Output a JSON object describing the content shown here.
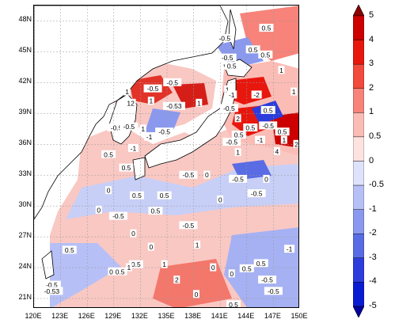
{
  "map": {
    "lat_labels": [
      "48N",
      "45N",
      "42N",
      "39N",
      "36N",
      "33N",
      "30N",
      "27N",
      "24N",
      "21N"
    ],
    "lon_labels": [
      "120E",
      "123E",
      "126E",
      "129E",
      "132E",
      "135E",
      "138E",
      "141E",
      "144E",
      "147E",
      "150E"
    ],
    "lat_range": [
      20,
      49.5
    ],
    "lon_range": [
      120,
      150
    ],
    "grid": "dashed-gray",
    "contour_labels": [
      {
        "text": "0.5",
        "lon": 146.2,
        "lat": 47.3
      },
      {
        "text": "-0.5",
        "lon": 141.5,
        "lat": 46.3
      },
      {
        "text": "0.5",
        "lon": 144.7,
        "lat": 45.2
      },
      {
        "text": "0.5",
        "lon": 146.1,
        "lat": 44.7
      },
      {
        "text": "-0.5",
        "lon": 141.8,
        "lat": 44.4
      },
      {
        "text": "0.5",
        "lon": 142.3,
        "lat": 43.6
      },
      {
        "text": "1",
        "lon": 147.9,
        "lat": 43.2
      },
      {
        "text": "-0.5",
        "lon": 135.6,
        "lat": 42.0
      },
      {
        "text": "-0.5",
        "lon": 133.4,
        "lat": 41.4
      },
      {
        "text": "1",
        "lon": 141.8,
        "lat": 41.3
      },
      {
        "text": "1",
        "lon": 130.5,
        "lat": 41.1
      },
      {
        "text": "-1",
        "lon": 142.3,
        "lat": 40.8
      },
      {
        "text": "-2",
        "lon": 145.1,
        "lat": 40.8
      },
      {
        "text": "1",
        "lon": 149.3,
        "lat": 41.1
      },
      {
        "text": "1",
        "lon": 133.2,
        "lat": 40.2
      },
      {
        "text": "12",
        "lon": 130.9,
        "lat": 40.0
      },
      {
        "text": "-0.53",
        "lon": 135.8,
        "lat": 39.7
      },
      {
        "text": "1",
        "lon": 138.6,
        "lat": 40.0
      },
      {
        "text": "-0.5",
        "lon": 142.0,
        "lat": 39.5
      },
      {
        "text": "2",
        "lon": 143.0,
        "lat": 38.5
      },
      {
        "text": "0.5",
        "lon": 146.4,
        "lat": 39.3
      },
      {
        "text": "-0.5",
        "lon": 129.3,
        "lat": 37.6
      },
      {
        "text": "-0.5",
        "lon": 130.7,
        "lat": 37.7
      },
      {
        "text": "1",
        "lon": 132.3,
        "lat": 37.5
      },
      {
        "text": "-0.5",
        "lon": 134.7,
        "lat": 37.2
      },
      {
        "text": "0.5",
        "lon": 144.4,
        "lat": 37.6
      },
      {
        "text": "-0.5",
        "lon": 146.4,
        "lat": 37.8
      },
      {
        "text": "0.5",
        "lon": 148.0,
        "lat": 37.2
      },
      {
        "text": "-1",
        "lon": 133.0,
        "lat": 36.7
      },
      {
        "text": "0.5",
        "lon": 143.1,
        "lat": 36.9
      },
      {
        "text": "-1",
        "lon": 131.2,
        "lat": 35.6
      },
      {
        "text": "-0.5",
        "lon": 142.3,
        "lat": 36.2
      },
      {
        "text": "-1",
        "lon": 145.5,
        "lat": 36.4
      },
      {
        "text": "1",
        "lon": 148.2,
        "lat": 36.4
      },
      {
        "text": "2",
        "lon": 149.6,
        "lat": 36.0
      },
      {
        "text": "0.5",
        "lon": 128.4,
        "lat": 35.0
      },
      {
        "text": "1",
        "lon": 143.0,
        "lat": 35.2
      },
      {
        "text": "4",
        "lon": 147.4,
        "lat": 35.3
      },
      {
        "text": "0.5",
        "lon": 130.4,
        "lat": 33.7
      },
      {
        "text": "-0.5",
        "lon": 137.4,
        "lat": 33.0
      },
      {
        "text": "0",
        "lon": 139.5,
        "lat": 33.0
      },
      {
        "text": "-0.5",
        "lon": 143.0,
        "lat": 32.6
      },
      {
        "text": "0",
        "lon": 146.2,
        "lat": 32.6
      },
      {
        "text": "0",
        "lon": 128.4,
        "lat": 31.5
      },
      {
        "text": "0.5",
        "lon": 131.6,
        "lat": 31.0
      },
      {
        "text": "0.5",
        "lon": 134.7,
        "lat": 31.0
      },
      {
        "text": "0",
        "lon": 141.0,
        "lat": 30.6
      },
      {
        "text": "-0.5",
        "lon": 145.1,
        "lat": 31.2
      },
      {
        "text": "0",
        "lon": 127.3,
        "lat": 29.6
      },
      {
        "text": "-0.5",
        "lon": 129.5,
        "lat": 29.0
      },
      {
        "text": "0.5",
        "lon": 133.7,
        "lat": 29.5
      },
      {
        "text": "-0.5",
        "lon": 137.4,
        "lat": 28.1
      },
      {
        "text": "0",
        "lon": 131.2,
        "lat": 27.3
      },
      {
        "text": "0.5",
        "lon": 124.0,
        "lat": 25.7
      },
      {
        "text": "0",
        "lon": 133.2,
        "lat": 26.0
      },
      {
        "text": "1",
        "lon": 138.4,
        "lat": 26.2
      },
      {
        "text": "-1",
        "lon": 148.8,
        "lat": 25.8
      },
      {
        "text": "0.5",
        "lon": 131.5,
        "lat": 24.3
      },
      {
        "text": "1",
        "lon": 134.7,
        "lat": 24.3
      },
      {
        "text": "1",
        "lon": 130.7,
        "lat": 24.0
      },
      {
        "text": "0",
        "lon": 128.7,
        "lat": 23.6
      },
      {
        "text": "0.5",
        "lon": 129.7,
        "lat": 23.6
      },
      {
        "text": "0",
        "lon": 140.2,
        "lat": 24.0
      },
      {
        "text": "0.5",
        "lon": 144.0,
        "lat": 23.9
      },
      {
        "text": "0.5",
        "lon": 145.6,
        "lat": 24.4
      },
      {
        "text": "0",
        "lon": 142.3,
        "lat": 23.4
      },
      {
        "text": "2",
        "lon": 136.1,
        "lat": 22.8
      },
      {
        "text": "-0.5",
        "lon": 122.0,
        "lat": 22.3
      },
      {
        "text": "-0.5",
        "lon": 146.3,
        "lat": 22.8
      },
      {
        "text": "-0.53",
        "lon": 122.0,
        "lat": 21.7
      },
      {
        "text": "-0.5",
        "lon": 147.0,
        "lat": 21.7
      },
      {
        "text": "0",
        "lon": 138.3,
        "lat": 21.4
      },
      {
        "text": "0.5",
        "lon": 142.5,
        "lat": 20.4
      }
    ]
  },
  "colorbar": {
    "ticks": [
      "5",
      "4",
      "3",
      "2",
      "1",
      "0.5",
      "0",
      "-0.5",
      "-1",
      "-2",
      "-3",
      "-4",
      "-5"
    ],
    "colors": [
      "#8b0000",
      "#cc0000",
      "#e8170e",
      "#f24a3c",
      "#f7837a",
      "#fbbcb6",
      "#fde3e0",
      "#dfe2fb",
      "#b7c0f6",
      "#8a99ee",
      "#5a6ce4",
      "#2d3ddb",
      "#0a1cd1",
      "#0000a0"
    ]
  }
}
